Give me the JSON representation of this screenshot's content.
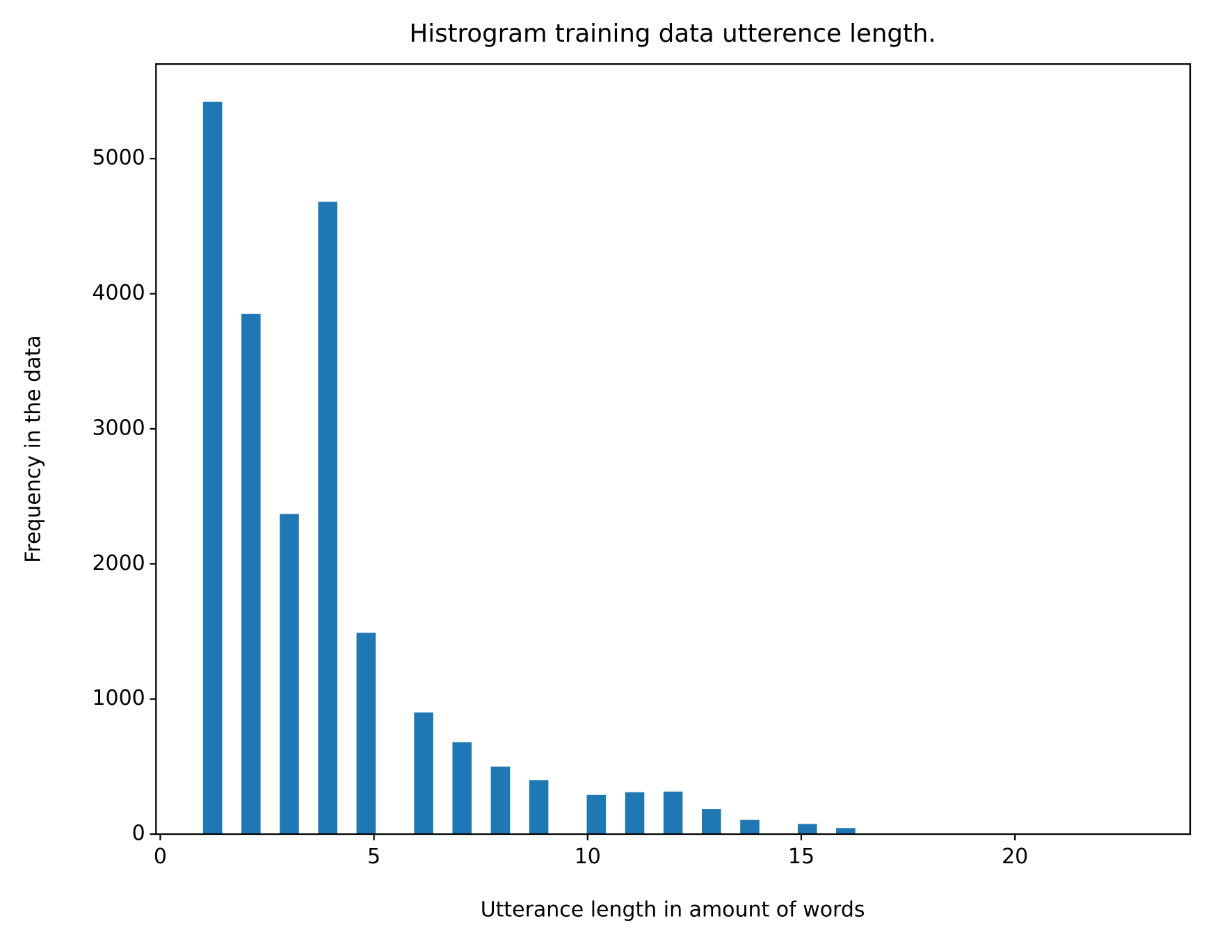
{
  "chart_data": {
    "type": "histogram",
    "title": "Histrogram training data utterence length.",
    "xlabel": "Utterance length in amount of words",
    "ylabel": "Frequency in the data",
    "color": "#1f77b4",
    "bins": [
      1.0,
      1.449,
      1.898,
      2.347,
      2.796,
      3.245,
      3.694,
      4.143,
      4.592,
      5.041,
      5.49,
      5.939,
      6.388,
      6.837,
      7.286,
      7.735,
      8.184,
      8.633,
      9.082,
      9.531,
      9.98,
      10.429,
      10.878,
      11.327,
      11.776,
      12.224,
      12.673,
      13.122,
      13.571,
      14.02,
      14.469,
      14.918,
      15.367,
      15.816,
      16.265,
      16.714,
      17.163,
      17.612,
      18.061,
      18.51,
      18.959,
      19.408,
      19.857,
      20.306,
      20.755,
      21.204,
      21.653,
      22.102,
      22.551,
      23.0
    ],
    "values": [
      5420,
      0,
      3850,
      0,
      2370,
      0,
      4680,
      0,
      1490,
      0,
      0,
      900,
      0,
      680,
      0,
      500,
      0,
      400,
      0,
      0,
      290,
      0,
      310,
      0,
      315,
      0,
      185,
      0,
      105,
      0,
      0,
      75,
      0,
      45,
      0,
      5,
      0,
      0,
      0,
      0,
      0,
      0,
      0,
      0,
      0,
      0,
      0,
      0,
      1
    ],
    "xlim": [
      -0.1,
      24.1
    ],
    "ylim": [
      0,
      5700
    ],
    "xticks": [
      0,
      5,
      10,
      15,
      20
    ],
    "yticks": [
      0,
      1000,
      2000,
      3000,
      4000,
      5000
    ],
    "grid": false
  }
}
